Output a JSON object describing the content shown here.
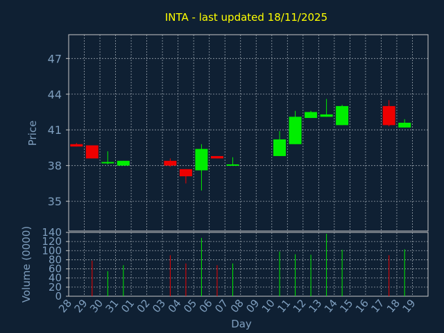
{
  "colors": {
    "background": "#0f2033",
    "plot_border": "#c8c8c8",
    "grid": "#9aa4ae",
    "title": "#ffff00",
    "axis_text": "#7f9fbf",
    "up": "#00ee00",
    "down": "#ee0000"
  },
  "chart_data": {
    "type": "candlestick",
    "title": "INTA - last updated 18/11/2025",
    "xlabel": "Day",
    "price_panel": {
      "ylabel": "Price",
      "ylim": [
        32.5,
        49
      ],
      "yticks": [
        35,
        38,
        41,
        44,
        47
      ],
      "grid": true
    },
    "volume_panel": {
      "ylabel": "Volume (0000)",
      "ylim": [
        0,
        140
      ],
      "yticks": [
        0,
        20,
        40,
        60,
        80,
        100,
        120,
        140
      ],
      "grid": true
    },
    "x_tick_labels": [
      "28",
      "29",
      "30",
      "31",
      "01",
      "02",
      "03",
      "04",
      "05",
      "06",
      "07",
      "08",
      "09",
      "10",
      "11",
      "12",
      "13",
      "14",
      "15",
      "16",
      "17",
      "18",
      "19"
    ],
    "candles": [
      {
        "day": "28",
        "open": 39.8,
        "high": 39.9,
        "low": 39.6,
        "close": 39.6,
        "volume": 0
      },
      {
        "day": "29",
        "open": 39.7,
        "high": 39.7,
        "low": 38.6,
        "close": 38.6,
        "volume": 78
      },
      {
        "day": "30",
        "open": 38.3,
        "high": 39.2,
        "low": 38.1,
        "close": 38.3,
        "volume": 55
      },
      {
        "day": "31",
        "open": 38.0,
        "high": 38.4,
        "low": 38.0,
        "close": 38.4,
        "volume": 68
      },
      {
        "day": "03",
        "open": 38.4,
        "high": 38.6,
        "low": 37.9,
        "close": 38.0,
        "volume": 90
      },
      {
        "day": "04",
        "open": 37.7,
        "high": 37.7,
        "low": 36.5,
        "close": 37.1,
        "volume": 72
      },
      {
        "day": "05",
        "open": 37.6,
        "high": 39.8,
        "low": 35.9,
        "close": 39.4,
        "volume": 128
      },
      {
        "day": "06",
        "open": 38.8,
        "high": 38.8,
        "low": 38.6,
        "close": 38.6,
        "volume": 68
      },
      {
        "day": "07",
        "open": 38.0,
        "high": 38.7,
        "low": 38.0,
        "close": 38.1,
        "volume": 72
      },
      {
        "day": "10",
        "open": 38.8,
        "high": 40.9,
        "low": 38.8,
        "close": 40.2,
        "volume": 98
      },
      {
        "day": "11",
        "open": 39.8,
        "high": 42.6,
        "low": 39.8,
        "close": 42.1,
        "volume": 92
      },
      {
        "day": "12",
        "open": 42.0,
        "high": 42.6,
        "low": 42.0,
        "close": 42.5,
        "volume": 91
      },
      {
        "day": "13",
        "open": 42.1,
        "high": 43.6,
        "low": 42.1,
        "close": 42.3,
        "volume": 137
      },
      {
        "day": "14",
        "open": 41.4,
        "high": 43.1,
        "low": 41.4,
        "close": 43.0,
        "volume": 102
      },
      {
        "day": "17",
        "open": 43.0,
        "high": 43.5,
        "low": 41.3,
        "close": 41.4,
        "volume": 90
      },
      {
        "day": "18",
        "open": 41.2,
        "high": 41.9,
        "low": 41.2,
        "close": 41.6,
        "volume": 103
      }
    ]
  }
}
